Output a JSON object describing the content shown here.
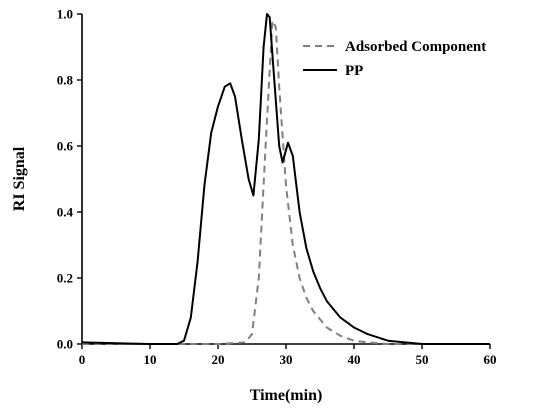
{
  "chart_data": {
    "type": "line",
    "xlabel": "Time(min)",
    "ylabel": "RI Signal",
    "xlim": [
      0,
      60
    ],
    "ylim": [
      0,
      1.0
    ],
    "x_ticks": [
      0,
      10,
      20,
      30,
      40,
      50,
      60
    ],
    "y_ticks": [
      0.0,
      0.2,
      0.4,
      0.6,
      0.8,
      1.0
    ],
    "x_tick_labels": [
      "0",
      "10",
      "20",
      "30",
      "40",
      "50",
      "60"
    ],
    "y_tick_labels": [
      "0.0",
      "0.2",
      "0.4",
      "0.6",
      "0.8",
      "1.0"
    ],
    "grid": false,
    "legend_position": "top-right",
    "series": [
      {
        "name": "Adsorbed Component",
        "style": "dashed",
        "color": "#808080",
        "points": [
          [
            0,
            0.0
          ],
          [
            10,
            0.0
          ],
          [
            20,
            0.0
          ],
          [
            24,
            0.005
          ],
          [
            25,
            0.03
          ],
          [
            26,
            0.2
          ],
          [
            27,
            0.6
          ],
          [
            28,
            0.98
          ],
          [
            28.5,
            0.96
          ],
          [
            29,
            0.78
          ],
          [
            30,
            0.48
          ],
          [
            31,
            0.3
          ],
          [
            32,
            0.2
          ],
          [
            33,
            0.14
          ],
          [
            34,
            0.1
          ],
          [
            36,
            0.05
          ],
          [
            38,
            0.025
          ],
          [
            40,
            0.01
          ],
          [
            42,
            0.005
          ],
          [
            45,
            0.0
          ],
          [
            55,
            0.0
          ],
          [
            60,
            0.0
          ]
        ]
      },
      {
        "name": "PP",
        "style": "solid",
        "color": "#000000",
        "points": [
          [
            0,
            0.005
          ],
          [
            10,
            0.0
          ],
          [
            14,
            0.0
          ],
          [
            15,
            0.01
          ],
          [
            16,
            0.08
          ],
          [
            17,
            0.25
          ],
          [
            18,
            0.48
          ],
          [
            19,
            0.64
          ],
          [
            20,
            0.72
          ],
          [
            21,
            0.78
          ],
          [
            21.8,
            0.79
          ],
          [
            22.5,
            0.75
          ],
          [
            23.5,
            0.62
          ],
          [
            24.5,
            0.5
          ],
          [
            25.2,
            0.45
          ],
          [
            26,
            0.62
          ],
          [
            26.7,
            0.9
          ],
          [
            27.2,
            1.0
          ],
          [
            27.6,
            0.99
          ],
          [
            28.2,
            0.82
          ],
          [
            29,
            0.6
          ],
          [
            29.5,
            0.55
          ],
          [
            30.3,
            0.61
          ],
          [
            31,
            0.57
          ],
          [
            32,
            0.4
          ],
          [
            33,
            0.29
          ],
          [
            34,
            0.22
          ],
          [
            35,
            0.17
          ],
          [
            36,
            0.13
          ],
          [
            38,
            0.08
          ],
          [
            40,
            0.05
          ],
          [
            42,
            0.03
          ],
          [
            45,
            0.01
          ],
          [
            50,
            0.0
          ],
          [
            55,
            0.0
          ],
          [
            60,
            0.0
          ]
        ]
      }
    ]
  }
}
